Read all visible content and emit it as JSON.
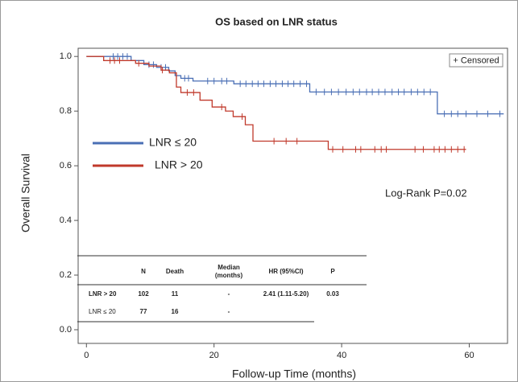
{
  "chart_data": {
    "type": "step",
    "title": "OS based on LNR status",
    "x_label": "Follow-up Time (months)",
    "y_label": "Overall Survival",
    "xlim": [
      -1.3,
      66
    ],
    "ylim": [
      -0.05,
      1.03
    ],
    "xticks": [
      0,
      20,
      40,
      60
    ],
    "yticks": [
      {
        "value": 0,
        "label": "0.0"
      },
      0.2,
      0.4,
      0.6,
      0.8,
      {
        "value": 1,
        "label": "1.0"
      }
    ],
    "censor_label": "+ Censored",
    "annotation": "Log-Rank P=0.02",
    "series": [
      {
        "name": "LNR ≤ 20",
        "color": "#4a6fb5",
        "x": [
          0,
          7,
          9,
          11,
          12.9,
          13.9,
          14.8,
          16.7,
          23.1,
          35,
          55,
          65.4
        ],
        "y": [
          1,
          0.985,
          0.97,
          0.96,
          0.947,
          0.93,
          0.92,
          0.91,
          0.9,
          0.87,
          0.79,
          0.79
        ],
        "censored": [
          4.2,
          4.9,
          5.7,
          6.4,
          9.8,
          10.5,
          11.7,
          12.4,
          15.4,
          16,
          19,
          20,
          21.2,
          22,
          24.1,
          25,
          26,
          26.9,
          27.8,
          28.8,
          29.7,
          30.7,
          31.6,
          32.5,
          33.5,
          34.5,
          36,
          37.3,
          38.4,
          39.5,
          40.7,
          41.8,
          42.8,
          43.9,
          44.8,
          45.8,
          46.8,
          47.9,
          48.9,
          49.8,
          50.9,
          51.9,
          52.9,
          53.9,
          56.1,
          57.2,
          58.2,
          59.5,
          61.2,
          62.9,
          64.8
        ]
      },
      {
        "name": "LNR > 20",
        "color": "#c0392b",
        "x": [
          0,
          2.7,
          7.7,
          9.8,
          11.7,
          13,
          14.1,
          14.8,
          17.8,
          19.7,
          21.8,
          23,
          24.9,
          26.1,
          37.9,
          59.5
        ],
        "y": [
          1,
          0.985,
          0.975,
          0.965,
          0.95,
          0.94,
          0.888,
          0.868,
          0.84,
          0.815,
          0.8,
          0.78,
          0.75,
          0.69,
          0.66,
          0.66
        ],
        "censored": [
          3.7,
          4.4,
          5.2,
          8.2,
          11.9,
          15.8,
          16.8,
          21.2,
          24.4,
          29.4,
          31.3,
          33,
          38.6,
          40.2,
          42.2,
          43,
          45.2,
          46.2,
          47,
          51.5,
          52.8,
          54.5,
          55.3,
          56.2,
          57.2,
          58.2,
          59.2
        ]
      }
    ],
    "table": {
      "columns": [
        [
          "N"
        ],
        [
          "Death"
        ],
        [
          "Median",
          "(months)"
        ],
        [
          "HR (95%CI)"
        ],
        [
          "P"
        ]
      ],
      "rows": [
        {
          "label": "LNR > 20",
          "cells": [
            102,
            11,
            "-",
            "2.41 (1.11-5.20)",
            0.03
          ]
        },
        {
          "label": "LNR ≤ 20",
          "cells": [
            77,
            16,
            "-"
          ]
        }
      ]
    }
  }
}
